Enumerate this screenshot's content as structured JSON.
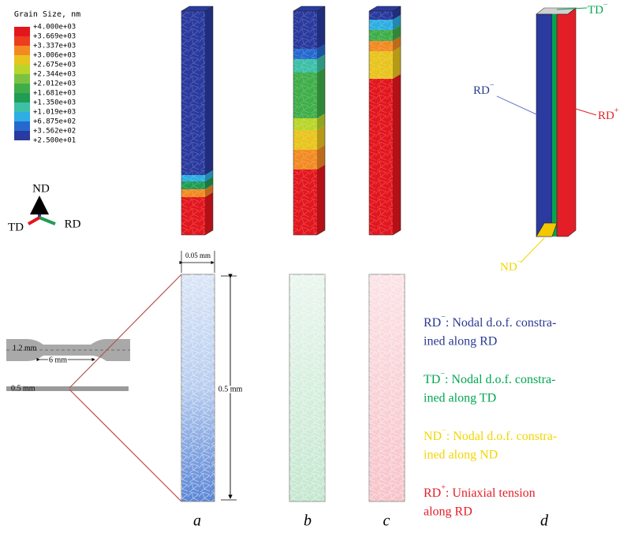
{
  "legend": {
    "title": "Grain Size, nm",
    "labels": [
      "+4.000e+03",
      "+3.669e+03",
      "+3.337e+03",
      "+3.006e+03",
      "+2.675e+03",
      "+2.344e+03",
      "+2.012e+03",
      "+1.681e+03",
      "+1.350e+03",
      "+1.019e+03",
      "+6.875e+02",
      "+3.562e+02",
      "+2.500e+01"
    ],
    "colors": [
      "#e3161e",
      "#ec3d1f",
      "#f28a22",
      "#e8c41e",
      "#b9d52a",
      "#7cc242",
      "#3fae49",
      "#1f9d55",
      "#3cc0a6",
      "#2eaee2",
      "#2569cf",
      "#2a3a9e"
    ]
  },
  "triad": {
    "nd": "ND",
    "td": "TD",
    "rd": "RD"
  },
  "specimen": {
    "width": "1.2 mm",
    "length": "6 mm",
    "thickness": "0.5 mm"
  },
  "strip": {
    "width": "0.05 mm",
    "height": "0.5 mm"
  },
  "panels": [
    "a",
    "b",
    "c",
    "d"
  ],
  "boundary": {
    "td": {
      "label": "TD",
      "sign": "−"
    },
    "rd_minus": {
      "label": "RD",
      "sign": "−"
    },
    "rd_plus": {
      "label": "RD",
      "sign": "+"
    },
    "nd": {
      "label": "ND",
      "sign": "−"
    }
  },
  "notes": [
    {
      "label": "RD",
      "sign": "−",
      "lines": [
        ": Nodal d.o.f. constra-",
        "ined along RD"
      ],
      "color": "#2b3990"
    },
    {
      "label": "TD",
      "sign": "−",
      "lines": [
        ": Nodal d.o.f. constra-",
        "ined along TD"
      ],
      "color": "#00a651"
    },
    {
      "label": "ND",
      "sign": "−",
      "lines": [
        ": Nodal d.o.f. constra-",
        "ined along ND"
      ],
      "color": "#f2d600"
    },
    {
      "label": "RD",
      "sign": "+",
      "lines": [
        ": Uniaxial tension",
        " along RD"
      ],
      "color": "#e41e26"
    }
  ]
}
